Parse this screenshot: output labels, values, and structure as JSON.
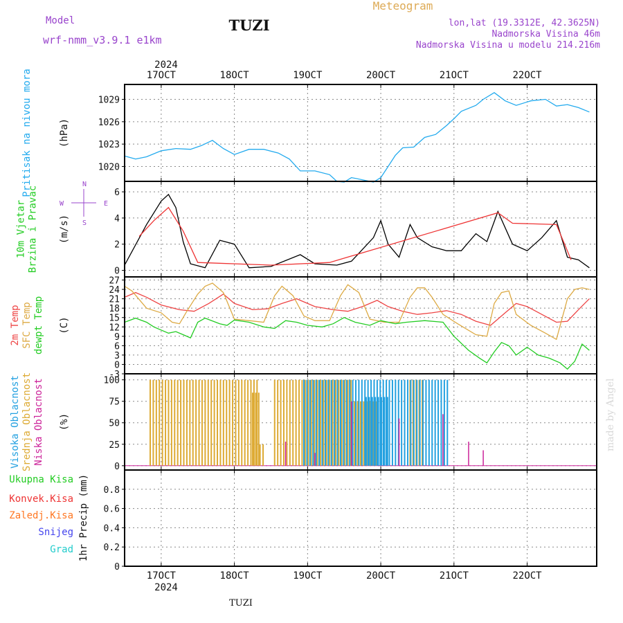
{
  "header": {
    "model_label": "Model",
    "model_name": "wrf-nmm_v3.9.1 e1km",
    "station": "TUZI",
    "product": "Meteogram",
    "coords": "lon,lat (19.3312E, 42.3625N)",
    "elevation": "Nadmorska Visina 46m",
    "model_elevation": "Nadmorska Visina u modelu 214.216m",
    "footer_station": "TUZI",
    "watermark": "made by Angel"
  },
  "colors": {
    "pressure": "#22aaee",
    "wind_speed": "#000000",
    "wind_gust": "#ee3333",
    "temp2m": "#ee4444",
    "sfc_temp": "#ddaa44",
    "dewpoint": "#22cc22",
    "cloud_high": "#22a0e0",
    "cloud_mid": "#ddaa33",
    "cloud_low": "#cc2299",
    "precip_total": "#22cc22",
    "precip_conv": "#ee3333",
    "precip_frozen": "#ff7722",
    "snow": "#4444ee",
    "hail": "#22cccc",
    "header_purple": "#9944cc",
    "header_gold": "#ddaa55"
  },
  "chart_data": [
    {
      "type": "line",
      "panel": "pressure",
      "ylabel_lines": [
        "Pritisak na nivou mora"
      ],
      "unit": "(hPa)",
      "ylim": [
        1018,
        1031
      ],
      "yticks": [
        1020,
        1023,
        1026,
        1029
      ],
      "series": [
        {
          "values": [
            [
              -0.5,
              1021.4
            ],
            [
              -0.35,
              1021.0
            ],
            [
              -0.2,
              1021.3
            ],
            [
              0,
              1022.1
            ],
            [
              0.2,
              1022.4
            ],
            [
              0.4,
              1022.3
            ],
            [
              0.55,
              1022.8
            ],
            [
              0.7,
              1023.5
            ],
            [
              0.85,
              1022.4
            ],
            [
              1.0,
              1021.6
            ],
            [
              1.2,
              1022.3
            ],
            [
              1.4,
              1022.3
            ],
            [
              1.6,
              1021.8
            ],
            [
              1.75,
              1021.0
            ],
            [
              1.9,
              1019.4
            ],
            [
              2.1,
              1019.4
            ],
            [
              2.3,
              1018.9
            ],
            [
              2.4,
              1018.0
            ],
            [
              2.5,
              1017.9
            ],
            [
              2.6,
              1018.5
            ],
            [
              2.75,
              1018.2
            ],
            [
              2.9,
              1017.9
            ],
            [
              3.0,
              1018.5
            ],
            [
              3.1,
              1020.0
            ],
            [
              3.2,
              1021.5
            ],
            [
              3.3,
              1022.5
            ],
            [
              3.45,
              1022.6
            ],
            [
              3.6,
              1023.9
            ],
            [
              3.75,
              1024.3
            ],
            [
              3.9,
              1025.5
            ],
            [
              4.0,
              1026.4
            ],
            [
              4.1,
              1027.4
            ],
            [
              4.3,
              1028.2
            ],
            [
              4.4,
              1029.0
            ],
            [
              4.55,
              1029.9
            ],
            [
              4.7,
              1028.8
            ],
            [
              4.85,
              1028.2
            ],
            [
              5.05,
              1028.8
            ],
            [
              5.25,
              1029.0
            ],
            [
              5.4,
              1028.1
            ],
            [
              5.55,
              1028.3
            ],
            [
              5.7,
              1027.9
            ],
            [
              5.85,
              1027.3
            ]
          ]
        }
      ]
    },
    {
      "type": "line",
      "panel": "wind",
      "ylabel_lines": [
        "10m Vjetar",
        "Brzina i Pravac"
      ],
      "unit": "(m/s)",
      "compass": {
        "n": "N",
        "s": "S",
        "w": "W",
        "e": "E"
      },
      "ylim": [
        -0.5,
        6.8
      ],
      "yticks": [
        0,
        2,
        4,
        6
      ],
      "series": [
        {
          "values": [
            [
              -0.5,
              0.4
            ],
            [
              -0.2,
              3.5
            ],
            [
              0,
              5.3
            ],
            [
              0.1,
              5.8
            ],
            [
              0.2,
              4.8
            ],
            [
              0.3,
              2.2
            ],
            [
              0.4,
              0.5
            ],
            [
              0.6,
              0.2
            ],
            [
              0.8,
              2.3
            ],
            [
              1.0,
              2.0
            ],
            [
              1.2,
              0.2
            ],
            [
              1.5,
              0.3
            ],
            [
              1.9,
              1.2
            ],
            [
              2.1,
              0.5
            ],
            [
              2.4,
              0.4
            ],
            [
              2.6,
              0.7
            ],
            [
              2.9,
              2.5
            ],
            [
              3.0,
              3.8
            ],
            [
              3.1,
              2.0
            ],
            [
              3.25,
              1.0
            ],
            [
              3.4,
              3.5
            ],
            [
              3.5,
              2.5
            ],
            [
              3.7,
              1.8
            ],
            [
              3.9,
              1.5
            ],
            [
              4.1,
              1.5
            ],
            [
              4.3,
              2.8
            ],
            [
              4.45,
              2.2
            ],
            [
              4.6,
              4.5
            ],
            [
              4.8,
              2.0
            ],
            [
              5.0,
              1.5
            ],
            [
              5.2,
              2.5
            ],
            [
              5.4,
              3.8
            ],
            [
              5.55,
              1.0
            ],
            [
              5.7,
              0.8
            ],
            [
              5.85,
              0.2
            ]
          ]
        },
        {
          "values": [
            [
              -0.3,
              2.6
            ],
            [
              -0.1,
              3.8
            ],
            [
              0.1,
              4.8
            ],
            [
              0.3,
              3.0
            ],
            [
              0.5,
              0.6
            ],
            [
              1.5,
              0.4
            ],
            [
              2.3,
              0.6
            ],
            [
              4.6,
              4.4
            ],
            [
              4.8,
              3.6
            ],
            [
              5.4,
              3.5
            ],
            [
              5.6,
              0.8
            ]
          ]
        }
      ]
    },
    {
      "type": "line",
      "panel": "temperature",
      "ylabel_lines": [
        "2m Temp",
        "SFC Temp",
        "dewpt Temp"
      ],
      "unit": "(C)",
      "ylim": [
        -3,
        28
      ],
      "yticks": [
        -3,
        0,
        3,
        6,
        9,
        12,
        15,
        18,
        21,
        24,
        27
      ],
      "series": [
        {
          "name": "2m Temp",
          "values": [
            [
              -0.5,
              21.5
            ],
            [
              -0.35,
              23.0
            ],
            [
              -0.2,
              21.5
            ],
            [
              0,
              19.0
            ],
            [
              0.25,
              17.5
            ],
            [
              0.45,
              17.0
            ],
            [
              0.65,
              19.5
            ],
            [
              0.85,
              22.5
            ],
            [
              1.0,
              19.5
            ],
            [
              1.25,
              17.5
            ],
            [
              1.45,
              17.8
            ],
            [
              1.65,
              19.5
            ],
            [
              1.85,
              21.0
            ],
            [
              2.1,
              18.5
            ],
            [
              2.35,
              17.5
            ],
            [
              2.55,
              17.0
            ],
            [
              2.75,
              18.5
            ],
            [
              2.95,
              20.5
            ],
            [
              3.1,
              18.5
            ],
            [
              3.3,
              17.0
            ],
            [
              3.5,
              16.0
            ],
            [
              3.7,
              16.5
            ],
            [
              3.9,
              17.2
            ],
            [
              4.1,
              16.0
            ],
            [
              4.3,
              13.8
            ],
            [
              4.5,
              12.5
            ],
            [
              4.7,
              16.5
            ],
            [
              4.85,
              19.5
            ],
            [
              5.0,
              18.5
            ],
            [
              5.2,
              16.0
            ],
            [
              5.4,
              13.5
            ],
            [
              5.55,
              13.8
            ],
            [
              5.7,
              17.5
            ],
            [
              5.85,
              21.0
            ]
          ]
        },
        {
          "name": "SFC Temp",
          "values": [
            [
              -0.5,
              25.0
            ],
            [
              -0.4,
              23.5
            ],
            [
              -0.2,
              18.0
            ],
            [
              0,
              16.5
            ],
            [
              0.15,
              13.5
            ],
            [
              0.25,
              13.0
            ],
            [
              0.35,
              17.0
            ],
            [
              0.5,
              22.5
            ],
            [
              0.6,
              25.0
            ],
            [
              0.7,
              26.0
            ],
            [
              0.85,
              23.0
            ],
            [
              1.0,
              14.5
            ],
            [
              1.2,
              14.0
            ],
            [
              1.4,
              13.5
            ],
            [
              1.55,
              22.0
            ],
            [
              1.65,
              25.0
            ],
            [
              1.8,
              22.0
            ],
            [
              1.95,
              15.5
            ],
            [
              2.1,
              14.0
            ],
            [
              2.3,
              14.0
            ],
            [
              2.45,
              22.0
            ],
            [
              2.55,
              25.5
            ],
            [
              2.7,
              23.0
            ],
            [
              2.85,
              14.5
            ],
            [
              3.05,
              13.5
            ],
            [
              3.25,
              13.5
            ],
            [
              3.4,
              21.5
            ],
            [
              3.5,
              24.5
            ],
            [
              3.6,
              24.5
            ],
            [
              3.7,
              21.5
            ],
            [
              3.85,
              16.0
            ],
            [
              4.05,
              13.0
            ],
            [
              4.3,
              9.5
            ],
            [
              4.45,
              9.0
            ],
            [
              4.55,
              19.5
            ],
            [
              4.65,
              23.0
            ],
            [
              4.75,
              23.5
            ],
            [
              4.85,
              16.0
            ],
            [
              5.05,
              12.5
            ],
            [
              5.25,
              10.0
            ],
            [
              5.4,
              8.0
            ],
            [
              5.55,
              21.0
            ],
            [
              5.65,
              24.0
            ],
            [
              5.75,
              24.5
            ],
            [
              5.85,
              24.0
            ]
          ]
        },
        {
          "name": "dewpt Temp",
          "values": [
            [
              -0.5,
              13.5
            ],
            [
              -0.35,
              14.8
            ],
            [
              -0.2,
              13.5
            ],
            [
              -0.1,
              12.0
            ],
            [
              0.1,
              10.0
            ],
            [
              0.2,
              10.5
            ],
            [
              0.3,
              9.5
            ],
            [
              0.4,
              8.5
            ],
            [
              0.5,
              13.5
            ],
            [
              0.6,
              14.8
            ],
            [
              0.8,
              13.0
            ],
            [
              0.9,
              12.5
            ],
            [
              1.0,
              14.2
            ],
            [
              1.2,
              13.5
            ],
            [
              1.4,
              12.0
            ],
            [
              1.55,
              11.5
            ],
            [
              1.7,
              14.0
            ],
            [
              1.85,
              13.5
            ],
            [
              2.0,
              12.5
            ],
            [
              2.2,
              12.0
            ],
            [
              2.35,
              13.0
            ],
            [
              2.5,
              15.0
            ],
            [
              2.65,
              13.5
            ],
            [
              2.85,
              12.5
            ],
            [
              3.0,
              14.0
            ],
            [
              3.2,
              13.0
            ],
            [
              3.35,
              13.5
            ],
            [
              3.6,
              14.0
            ],
            [
              3.85,
              13.5
            ],
            [
              4.0,
              9.0
            ],
            [
              4.2,
              4.5
            ],
            [
              4.35,
              2.0
            ],
            [
              4.45,
              0.5
            ],
            [
              4.55,
              4.0
            ],
            [
              4.65,
              7.0
            ],
            [
              4.75,
              6.0
            ],
            [
              4.85,
              3.0
            ],
            [
              5.0,
              5.5
            ],
            [
              5.15,
              3.0
            ],
            [
              5.3,
              2.0
            ],
            [
              5.45,
              0.5
            ],
            [
              5.55,
              -1.5
            ],
            [
              5.65,
              1.0
            ],
            [
              5.75,
              6.5
            ],
            [
              5.85,
              4.5
            ]
          ]
        }
      ]
    },
    {
      "type": "bar",
      "panel": "clouds",
      "ylabel_lines": [
        "Visoka Oblacnost",
        "Srednja Oblacnost",
        "Niska Oblacnost"
      ],
      "unit": "(%)",
      "ylim": [
        -5,
        107
      ],
      "yticks": [
        0,
        25,
        50,
        75,
        100
      ],
      "series": [
        {
          "name": "Visoka Oblacnost",
          "segments": [
            [
              1.95,
              3.95,
              100
            ],
            [
              2.8,
              3.1,
              80
            ]
          ]
        },
        {
          "name": "Srednja Oblacnost",
          "segments": [
            [
              -0.15,
              1.35,
              100
            ],
            [
              1.25,
              1.35,
              85
            ],
            [
              1.35,
              1.42,
              25
            ],
            [
              1.55,
              2.6,
              100
            ],
            [
              2.6,
              2.95,
              75
            ],
            [
              3.4,
              3.6,
              100
            ]
          ]
        },
        {
          "name": "Niska Oblacnost",
          "bars": [
            [
              1.7,
              28
            ],
            [
              2.1,
              15
            ],
            [
              2.6,
              75
            ],
            [
              3.25,
              55
            ],
            [
              3.85,
              60
            ],
            [
              4.2,
              28
            ],
            [
              4.4,
              18
            ]
          ]
        }
      ]
    },
    {
      "type": "bar",
      "panel": "precip",
      "ylabel_lines": [
        "1hr Precip (mm)"
      ],
      "legend": [
        "Ukupna Kisa",
        "Konvek.Kisa",
        "Zaledj.Kisa",
        "Snijeg",
        "Grad"
      ],
      "ylim": [
        0,
        1.0
      ],
      "yticks": [
        "0",
        "0.2",
        "0.4",
        "0.6",
        "0.8"
      ],
      "series": []
    }
  ],
  "axis": {
    "year": "2024",
    "day_labels": [
      "17OCT",
      "18OCT",
      "19OCT",
      "20OCT",
      "21OCT",
      "22OCT"
    ],
    "x_domain": [
      -0.5,
      5.95
    ]
  }
}
